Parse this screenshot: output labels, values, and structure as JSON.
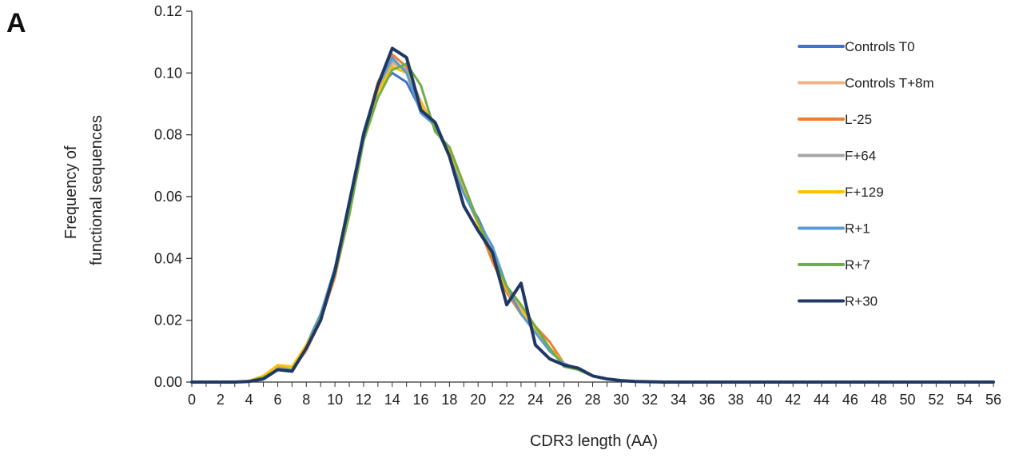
{
  "panel_label": "A",
  "chart_data": {
    "type": "line",
    "xlabel": "CDR3 length (AA)",
    "ylabel": [
      "Frequency of",
      "functional sequences"
    ],
    "xlim": [
      0,
      56
    ],
    "ylim": [
      0,
      0.12
    ],
    "x_ticks": [
      0,
      2,
      4,
      6,
      8,
      10,
      12,
      14,
      16,
      18,
      20,
      22,
      24,
      26,
      28,
      30,
      32,
      34,
      36,
      38,
      40,
      42,
      44,
      46,
      48,
      50,
      52,
      54,
      56
    ],
    "y_ticks": [
      "0.00",
      "0.02",
      "0.04",
      "0.06",
      "0.08",
      "0.10",
      "0.12"
    ],
    "grid": false,
    "legend_position": "right",
    "x": [
      0,
      1,
      2,
      3,
      4,
      5,
      6,
      7,
      8,
      9,
      10,
      11,
      12,
      13,
      14,
      15,
      16,
      17,
      18,
      19,
      20,
      21,
      22,
      23,
      24,
      25,
      26,
      27,
      28,
      29,
      30,
      31,
      32,
      33,
      34,
      35,
      36,
      37,
      38,
      39,
      40,
      41,
      42,
      43,
      44,
      45,
      46,
      47,
      48,
      49,
      50,
      51,
      52,
      53,
      54,
      55,
      56
    ],
    "series": [
      {
        "name": "Controls T0",
        "color": "#4472c4",
        "width": 3,
        "values": [
          0,
          0,
          0,
          0,
          0.0002,
          0.001,
          0.004,
          0.004,
          0.012,
          0.022,
          0.036,
          0.058,
          0.08,
          0.095,
          0.1,
          0.097,
          0.088,
          0.083,
          0.073,
          0.061,
          0.053,
          0.043,
          0.03,
          0.023,
          0.017,
          0.01,
          0.006,
          0.004,
          0.002,
          0.001,
          0.0005,
          0.0002,
          0.0001,
          0,
          0,
          0,
          0,
          0,
          0,
          0,
          0,
          0,
          0,
          0,
          0,
          0,
          0,
          0,
          0,
          0,
          0,
          0,
          0,
          0,
          0,
          0,
          0
        ]
      },
      {
        "name": "Controls T+8m",
        "color": "#f4b183",
        "width": 3,
        "values": [
          0,
          0,
          0,
          0,
          0.0003,
          0.002,
          0.004,
          0.004,
          0.01,
          0.02,
          0.034,
          0.054,
          0.078,
          0.094,
          0.103,
          0.101,
          0.091,
          0.082,
          0.074,
          0.062,
          0.052,
          0.042,
          0.03,
          0.024,
          0.018,
          0.011,
          0.006,
          0.004,
          0.002,
          0.001,
          0.0005,
          0.0002,
          0.0001,
          0,
          0,
          0,
          0,
          0,
          0,
          0,
          0,
          0,
          0,
          0,
          0,
          0,
          0,
          0,
          0,
          0,
          0,
          0,
          0,
          0,
          0,
          0,
          0
        ]
      },
      {
        "name": "L-25",
        "color": "#ed7d31",
        "width": 3,
        "values": [
          0,
          0,
          0,
          0,
          0.0003,
          0.002,
          0.005,
          0.004,
          0.011,
          0.02,
          0.034,
          0.056,
          0.08,
          0.097,
          0.106,
          0.102,
          0.089,
          0.083,
          0.074,
          0.062,
          0.051,
          0.039,
          0.029,
          0.022,
          0.018,
          0.013,
          0.006,
          0.004,
          0.002,
          0.001,
          0.0005,
          0.0002,
          0.0001,
          0,
          0,
          0,
          0,
          0,
          0,
          0,
          0,
          0,
          0,
          0,
          0,
          0,
          0,
          0,
          0,
          0,
          0,
          0,
          0,
          0,
          0,
          0,
          0
        ]
      },
      {
        "name": "F+64",
        "color": "#a5a5a5",
        "width": 3,
        "values": [
          0,
          0,
          0,
          0,
          0.0003,
          0.002,
          0.005,
          0.004,
          0.011,
          0.02,
          0.035,
          0.056,
          0.079,
          0.095,
          0.104,
          0.101,
          0.09,
          0.082,
          0.074,
          0.062,
          0.052,
          0.041,
          0.03,
          0.023,
          0.017,
          0.011,
          0.006,
          0.004,
          0.002,
          0.001,
          0.0005,
          0.0002,
          0.0001,
          0,
          0,
          0,
          0,
          0,
          0,
          0,
          0,
          0,
          0,
          0,
          0,
          0,
          0,
          0,
          0,
          0,
          0,
          0,
          0,
          0,
          0,
          0,
          0
        ]
      },
      {
        "name": "F+129",
        "color": "#ffc000",
        "width": 3,
        "values": [
          0,
          0,
          0,
          0,
          0.0004,
          0.002,
          0.0055,
          0.005,
          0.012,
          0.021,
          0.035,
          0.056,
          0.079,
          0.094,
          0.102,
          0.1,
          0.09,
          0.082,
          0.075,
          0.062,
          0.051,
          0.041,
          0.03,
          0.023,
          0.017,
          0.011,
          0.006,
          0.004,
          0.002,
          0.001,
          0.0005,
          0.0002,
          0.0001,
          0,
          0,
          0,
          0,
          0,
          0,
          0,
          0,
          0,
          0,
          0,
          0,
          0,
          0,
          0,
          0,
          0,
          0,
          0,
          0,
          0,
          0,
          0,
          0
        ]
      },
      {
        "name": "R+1",
        "color": "#5b9bd5",
        "width": 3,
        "values": [
          0,
          0,
          0,
          0,
          0.0002,
          0.001,
          0.004,
          0.004,
          0.011,
          0.022,
          0.037,
          0.058,
          0.081,
          0.096,
          0.105,
          0.1,
          0.087,
          0.083,
          0.073,
          0.061,
          0.052,
          0.044,
          0.031,
          0.022,
          0.016,
          0.01,
          0.006,
          0.004,
          0.002,
          0.001,
          0.0005,
          0.0002,
          0.0001,
          0,
          0,
          0,
          0,
          0,
          0,
          0,
          0,
          0,
          0,
          0,
          0,
          0,
          0,
          0,
          0,
          0,
          0,
          0,
          0,
          0,
          0,
          0,
          0
        ]
      },
      {
        "name": "R+7",
        "color": "#70ad47",
        "width": 3,
        "values": [
          0,
          0,
          0,
          0,
          0.0003,
          0.0015,
          0.004,
          0.004,
          0.011,
          0.021,
          0.035,
          0.054,
          0.078,
          0.092,
          0.101,
          0.103,
          0.096,
          0.081,
          0.076,
          0.064,
          0.052,
          0.041,
          0.031,
          0.025,
          0.018,
          0.011,
          0.005,
          0.004,
          0.002,
          0.001,
          0.0005,
          0.0002,
          0.0001,
          0,
          0,
          0,
          0,
          0,
          0,
          0,
          0,
          0,
          0,
          0,
          0,
          0,
          0,
          0,
          0,
          0,
          0,
          0,
          0,
          0,
          0,
          0,
          0
        ]
      },
      {
        "name": "R+30",
        "color": "#203864",
        "width": 4,
        "values": [
          0,
          0,
          0,
          0,
          0.0002,
          0.001,
          0.004,
          0.0035,
          0.011,
          0.02,
          0.036,
          0.058,
          0.08,
          0.096,
          0.108,
          0.105,
          0.088,
          0.084,
          0.073,
          0.057,
          0.049,
          0.042,
          0.025,
          0.032,
          0.012,
          0.0075,
          0.0055,
          0.0045,
          0.002,
          0.001,
          0.0005,
          0.0002,
          0.0001,
          0,
          0,
          0,
          0,
          0,
          0,
          0,
          0,
          0,
          0,
          0,
          0,
          0,
          0,
          0,
          0,
          0,
          0,
          0,
          0,
          0,
          0,
          0,
          0
        ]
      }
    ]
  }
}
